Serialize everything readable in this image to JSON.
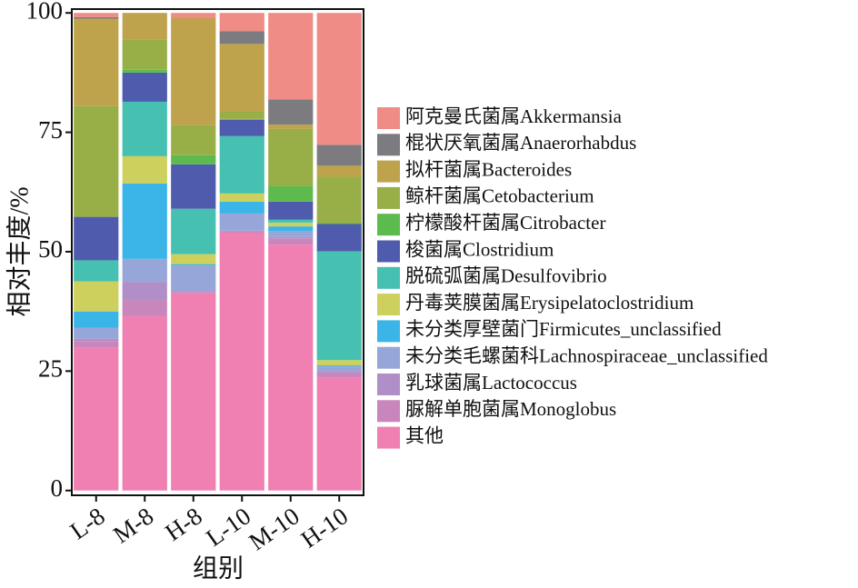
{
  "chart_data": {
    "type": "stacked_bar",
    "categories": [
      "L-8",
      "M-8",
      "H-8",
      "L-10",
      "M-10",
      "H-10"
    ],
    "xlabel": "组别",
    "ylabel": "相对丰度/%",
    "ylim": [
      -1,
      100.8
    ],
    "yticks": [
      0,
      25,
      50,
      75,
      100
    ],
    "series": [
      {
        "name": "阿克曼氏菌属Akkermansia",
        "color": "#f08c86",
        "values": [
          0.9,
          0,
          1.1,
          3.8,
          18.1,
          27.6
        ]
      },
      {
        "name": "棍状厌氧菌属Anaerorhabdus",
        "color": "#7c7c80",
        "values": [
          0.3,
          0,
          0,
          2.7,
          5.3,
          4.4
        ]
      },
      {
        "name": "拟杆菌属Bacteroides",
        "color": "#bea24c",
        "values": [
          18.3,
          5.6,
          22.4,
          14.2,
          0.9,
          2.3
        ]
      },
      {
        "name": "鲸杆菌属Cetobacterium",
        "color": "#98af48",
        "values": [
          23.2,
          6.3,
          6.3,
          1.5,
          12.0,
          9.7
        ]
      },
      {
        "name": "柠檬酸杆菌属Citrobacter",
        "color": "#5cba4e",
        "values": [
          0,
          0.6,
          1.9,
          0.2,
          3.2,
          0.2
        ]
      },
      {
        "name": "梭菌属Clostridium",
        "color": "#4f5cae",
        "values": [
          9.1,
          6.1,
          9.3,
          3.4,
          3.8,
          5.7
        ]
      },
      {
        "name": "脱硫弧菌属Desulfovibrio",
        "color": "#46c0b0",
        "values": [
          4.4,
          11.4,
          9.5,
          12.0,
          0.6,
          22.8
        ]
      },
      {
        "name": "丹毒荚膜菌属Erysipelatoclostridium",
        "color": "#cdd05c",
        "values": [
          6.3,
          5.7,
          2.1,
          1.7,
          0.8,
          1.1
        ]
      },
      {
        "name": "未分类厚壁菌门Firmicutes_unclassified",
        "color": "#3bb5e8",
        "values": [
          3.4,
          15.8,
          0.3,
          2.5,
          1.0,
          0.2
        ]
      },
      {
        "name": "未分类毛螺菌科Lachnospiraceae_unclassified",
        "color": "#97a6d9",
        "values": [
          2.3,
          4.8,
          5.3,
          3.6,
          1.2,
          1.0
        ]
      },
      {
        "name": "乳球菌属Lactococcus",
        "color": "#b08fc8",
        "values": [
          0.5,
          3.8,
          0.2,
          0.2,
          0.3,
          0.3
        ]
      },
      {
        "name": "脲解单胞菌属Monoglobus",
        "color": "#c886bc",
        "values": [
          1.3,
          3.4,
          0.3,
          0.2,
          1.3,
          1.1
        ]
      },
      {
        "name": "其他",
        "color": "#f07fb2",
        "values": [
          30.0,
          36.5,
          41.3,
          54.0,
          51.5,
          23.6
        ]
      }
    ]
  }
}
